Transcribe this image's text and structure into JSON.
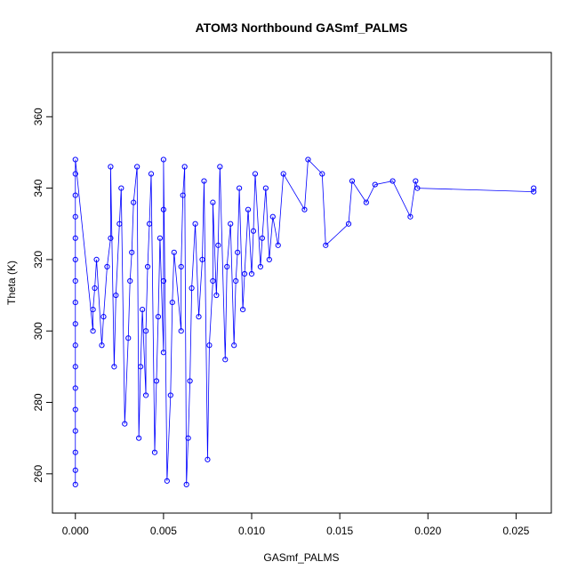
{
  "chart_data": {
    "type": "scatter",
    "title": "ATOM3 Northbound GASmf_PALMS",
    "xlabel": "GASmf_PALMS",
    "ylabel": "Theta (K)",
    "xlim": [
      -0.0013,
      0.027
    ],
    "ylim": [
      249,
      378
    ],
    "x_ticks": [
      0.0,
      0.005,
      0.01,
      0.015,
      0.02,
      0.025
    ],
    "x_tick_labels": [
      "0.000",
      "0.005",
      "0.010",
      "0.015",
      "0.020",
      "0.025"
    ],
    "y_ticks": [
      260,
      280,
      300,
      320,
      340,
      360
    ],
    "y_tick_labels": [
      "260",
      "280",
      "300",
      "320",
      "340",
      "360"
    ],
    "marker": "open-circle",
    "connected": true,
    "color": "#0000ff",
    "grid": false,
    "legend": "none",
    "series": [
      {
        "points": [
          [
            0.0,
            257
          ],
          [
            0.0,
            261
          ],
          [
            0.0,
            266
          ],
          [
            0.0,
            272
          ],
          [
            0.0,
            278
          ],
          [
            0.0,
            284
          ],
          [
            0.0,
            290
          ],
          [
            0.0,
            296
          ],
          [
            0.0,
            302
          ],
          [
            0.0,
            308
          ],
          [
            0.0,
            314
          ],
          [
            0.0,
            320
          ],
          [
            0.0,
            326
          ],
          [
            0.0,
            332
          ],
          [
            0.0,
            338
          ],
          [
            0.0,
            344
          ],
          [
            0.0,
            348
          ],
          [
            0.001,
            300
          ],
          [
            0.001,
            306
          ],
          [
            0.0011,
            312
          ],
          [
            0.0012,
            320
          ],
          [
            0.0015,
            296
          ],
          [
            0.0016,
            304
          ],
          [
            0.0018,
            318
          ],
          [
            0.002,
            326
          ],
          [
            0.002,
            346
          ],
          [
            0.0022,
            290
          ],
          [
            0.0023,
            310
          ],
          [
            0.0025,
            330
          ],
          [
            0.0026,
            340
          ],
          [
            0.0028,
            274
          ],
          [
            0.003,
            298
          ],
          [
            0.0031,
            314
          ],
          [
            0.0032,
            322
          ],
          [
            0.0033,
            336
          ],
          [
            0.0035,
            346
          ],
          [
            0.0036,
            270
          ],
          [
            0.0037,
            290
          ],
          [
            0.0038,
            306
          ],
          [
            0.004,
            282
          ],
          [
            0.004,
            300
          ],
          [
            0.0041,
            318
          ],
          [
            0.0042,
            330
          ],
          [
            0.0043,
            344
          ],
          [
            0.0045,
            266
          ],
          [
            0.0046,
            286
          ],
          [
            0.0047,
            304
          ],
          [
            0.0048,
            326
          ],
          [
            0.005,
            294
          ],
          [
            0.005,
            314
          ],
          [
            0.005,
            334
          ],
          [
            0.005,
            348
          ],
          [
            0.0052,
            258
          ],
          [
            0.0054,
            282
          ],
          [
            0.0055,
            308
          ],
          [
            0.0056,
            322
          ],
          [
            0.006,
            300
          ],
          [
            0.006,
            318
          ],
          [
            0.0061,
            338
          ],
          [
            0.0062,
            346
          ],
          [
            0.0063,
            257
          ],
          [
            0.0064,
            270
          ],
          [
            0.0065,
            286
          ],
          [
            0.0066,
            312
          ],
          [
            0.0068,
            330
          ],
          [
            0.007,
            304
          ],
          [
            0.0072,
            320
          ],
          [
            0.0073,
            342
          ],
          [
            0.0075,
            264
          ],
          [
            0.0076,
            296
          ],
          [
            0.0078,
            314
          ],
          [
            0.0078,
            336
          ],
          [
            0.008,
            310
          ],
          [
            0.0081,
            324
          ],
          [
            0.0082,
            346
          ],
          [
            0.0085,
            292
          ],
          [
            0.0086,
            318
          ],
          [
            0.0088,
            330
          ],
          [
            0.009,
            296
          ],
          [
            0.0091,
            314
          ],
          [
            0.0092,
            322
          ],
          [
            0.0093,
            340
          ],
          [
            0.0095,
            306
          ],
          [
            0.0096,
            316
          ],
          [
            0.0098,
            334
          ],
          [
            0.01,
            316
          ],
          [
            0.0101,
            328
          ],
          [
            0.0102,
            344
          ],
          [
            0.0105,
            318
          ],
          [
            0.0106,
            326
          ],
          [
            0.0108,
            340
          ],
          [
            0.011,
            320
          ],
          [
            0.0112,
            332
          ],
          [
            0.0115,
            324
          ],
          [
            0.0118,
            344
          ],
          [
            0.013,
            334
          ],
          [
            0.0132,
            348
          ],
          [
            0.014,
            344
          ],
          [
            0.0142,
            324
          ],
          [
            0.0155,
            330
          ],
          [
            0.0157,
            342
          ],
          [
            0.0165,
            336
          ],
          [
            0.017,
            341
          ],
          [
            0.018,
            342
          ],
          [
            0.019,
            332
          ],
          [
            0.0193,
            342
          ],
          [
            0.0194,
            340
          ],
          [
            0.026,
            339
          ],
          [
            0.026,
            340
          ]
        ]
      }
    ]
  }
}
